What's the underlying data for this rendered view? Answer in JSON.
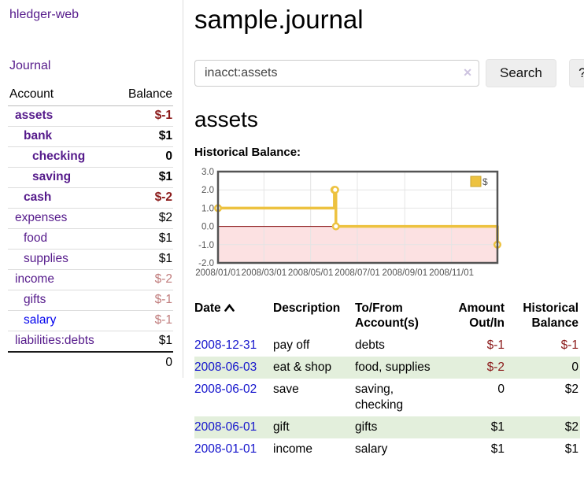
{
  "sidebar": {
    "app_title": "hledger-web",
    "journal_link": "Journal",
    "table_headers": {
      "account": "Account",
      "balance": "Balance"
    },
    "accounts": [
      {
        "name": "assets",
        "balance": "$-1",
        "indent": "ind1",
        "row_class": "match",
        "bal_class": "neg-strong",
        "link_class": ""
      },
      {
        "name": "bank",
        "balance": "$1",
        "indent": "ind2",
        "row_class": "match",
        "bal_class": "",
        "link_class": ""
      },
      {
        "name": "checking",
        "balance": "0",
        "indent": "ind3",
        "row_class": "match",
        "bal_class": "",
        "link_class": ""
      },
      {
        "name": "saving",
        "balance": "$1",
        "indent": "ind3",
        "row_class": "match",
        "bal_class": "",
        "link_class": ""
      },
      {
        "name": "cash",
        "balance": "$-2",
        "indent": "ind2",
        "row_class": "match",
        "bal_class": "neg-strong",
        "link_class": ""
      },
      {
        "name": "expenses",
        "balance": "$2",
        "indent": "ind1",
        "row_class": "",
        "bal_class": "",
        "link_class": ""
      },
      {
        "name": "food",
        "balance": "$1",
        "indent": "ind2",
        "row_class": "",
        "bal_class": "",
        "link_class": ""
      },
      {
        "name": "supplies",
        "balance": "$1",
        "indent": "ind2",
        "row_class": "",
        "bal_class": "",
        "link_class": ""
      },
      {
        "name": "income",
        "balance": "$-2",
        "indent": "ind1",
        "row_class": "",
        "bal_class": "neg-soft",
        "link_class": ""
      },
      {
        "name": "gifts",
        "balance": "$-1",
        "indent": "ind2",
        "row_class": "",
        "bal_class": "neg-soft",
        "link_class": ""
      },
      {
        "name": "salary",
        "balance": "$-1",
        "indent": "ind2",
        "row_class": "",
        "bal_class": "neg-soft",
        "link_class": "unvisited"
      },
      {
        "name": "liabilities:debts",
        "balance": "$1",
        "indent": "ind1",
        "row_class": "",
        "bal_class": "",
        "link_class": ""
      }
    ],
    "total": "0"
  },
  "main": {
    "title": "sample.journal",
    "search": {
      "value": "inacct:assets",
      "clear_icon": "✕",
      "button_label": "Search",
      "help_label": "?"
    },
    "account_heading": "assets",
    "chart_label": "Historical Balance:"
  },
  "chart_data": {
    "type": "line",
    "step": true,
    "title": "Historical Balance",
    "legend_position": "top-right",
    "grid": true,
    "xlim": [
      "2008-01-01",
      "2008-12-31"
    ],
    "ylim": [
      -2,
      3
    ],
    "yticks": [
      {
        "v": 3,
        "label": "3.0"
      },
      {
        "v": 2,
        "label": "2.0"
      },
      {
        "v": 1,
        "label": "1.0"
      },
      {
        "v": 0,
        "label": "0.0"
      },
      {
        "v": -1,
        "label": "-1.0"
      },
      {
        "v": -2,
        "label": "-2.0"
      }
    ],
    "xticks": [
      {
        "date": "2008-01-01",
        "label": "2008/01/01"
      },
      {
        "date": "2008-03-01",
        "label": "2008/03/01"
      },
      {
        "date": "2008-05-01",
        "label": "2008/05/01"
      },
      {
        "date": "2008-07-01",
        "label": "2008/07/01"
      },
      {
        "date": "2008-09-01",
        "label": "2008/09/01"
      },
      {
        "date": "2008-11-01",
        "label": "2008/11/01"
      }
    ],
    "series": [
      {
        "name": "$",
        "color": "#EDC240",
        "points": [
          [
            "2008-01-01",
            1
          ],
          [
            "2008-06-01",
            2
          ],
          [
            "2008-06-02",
            2
          ],
          [
            "2008-06-03",
            0
          ],
          [
            "2008-12-31",
            -1
          ]
        ]
      }
    ],
    "colors": {
      "grid": "#e4e4e4",
      "border": "#545454",
      "zero_line": "#800000",
      "negative_fill": "#FCE1E2",
      "axis_text": "#545454",
      "legend_bg": "rgba(255,255,255,0.85)",
      "legend_box_border": "#C9A42E",
      "marker_fill": "#ffffff"
    }
  },
  "register": {
    "headers": {
      "date": "Date",
      "description": "Description",
      "accounts_line1": "To/From",
      "accounts_line2": "Account(s)",
      "amount_line1": "Amount",
      "amount_line2": "Out/In",
      "balance_line1": "Historical",
      "balance_line2": "Balance"
    },
    "rows": [
      {
        "date": "2008-12-31",
        "description": "pay off",
        "accounts": "debts",
        "amount": "$-1",
        "balance": "$-1",
        "amount_class": "neg",
        "balance_class": "neg"
      },
      {
        "date": "2008-06-03",
        "description": "eat & shop",
        "accounts": "food, supplies",
        "amount": "$-2",
        "balance": "0",
        "amount_class": "neg",
        "balance_class": ""
      },
      {
        "date": "2008-06-02",
        "description": "save",
        "accounts": "saving, checking",
        "amount": "0",
        "balance": "$2",
        "amount_class": "",
        "balance_class": ""
      },
      {
        "date": "2008-06-01",
        "description": "gift",
        "accounts": "gifts",
        "amount": "$1",
        "balance": "$2",
        "amount_class": "",
        "balance_class": ""
      },
      {
        "date": "2008-01-01",
        "description": "income",
        "accounts": "salary",
        "amount": "$1",
        "balance": "$1",
        "amount_class": "",
        "balance_class": ""
      }
    ]
  }
}
